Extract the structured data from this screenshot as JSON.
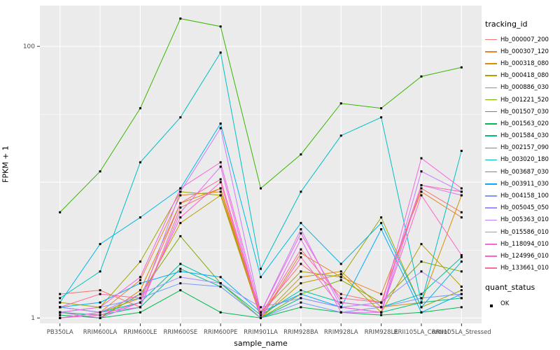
{
  "chart": {
    "ylabel": "FPKM + 1",
    "xlabel": "sample_name",
    "legend_title": "tracking_id",
    "legend2_title": "quant_status",
    "legend2_item_label": "OK"
  },
  "chart_data": {
    "type": "line",
    "title": "",
    "xlabel": "sample_name",
    "ylabel": "FPKM + 1",
    "y_scale": "log10",
    "ylim": [
      1,
      250
    ],
    "legend_position": "right",
    "panel_bg": "#EBEBEB",
    "grid_color": "#FFFFFF",
    "point_color": "#000000",
    "point_shape": "square",
    "quant_status_legend": {
      "title": "quant_status",
      "items": [
        "OK"
      ]
    },
    "grid": {
      "major": [
        1,
        10,
        100
      ],
      "minor": [
        3.162,
        31.62
      ]
    },
    "y_ticks": [
      {
        "label": "100",
        "value": 100
      },
      {
        "label": "1",
        "value": 1
      }
    ],
    "categories": [
      "PB350LA",
      "RRIM600LA",
      "RRIM600LE",
      "RRIM600SE",
      "RRIM600PE",
      "RRIM901LA",
      "RRIM928BA",
      "RRIM928LA",
      "RRIM928LE",
      "RRII105LA_Control",
      "RRII105LA_Stressed"
    ],
    "series": [
      {
        "name": "Hb_000007_200",
        "color": "#F8766D",
        "values": [
          1.5,
          1.6,
          1.2,
          6.5,
          9.0,
          1.1,
          2.5,
          1.5,
          1.3,
          9.0,
          6.0
        ]
      },
      {
        "name": "Hb_000307_120",
        "color": "#EA8331",
        "values": [
          1.2,
          1.1,
          1.9,
          8.0,
          8.5,
          1.0,
          3.0,
          2.0,
          1.5,
          8.5,
          5.5
        ]
      },
      {
        "name": "Hb_000318_080",
        "color": "#D89000",
        "values": [
          1.1,
          1.0,
          1.6,
          7.0,
          9.0,
          1.0,
          2.0,
          2.2,
          1.2,
          1.3,
          8.0
        ]
      },
      {
        "name": "Hb_000418_080",
        "color": "#C09B00",
        "values": [
          1.0,
          1.1,
          1.4,
          5.0,
          8.0,
          1.0,
          1.8,
          2.1,
          1.1,
          3.5,
          1.7
        ]
      },
      {
        "name": "Hb_000886_030",
        "color": "#A3A500",
        "values": [
          1.3,
          1.2,
          2.6,
          8.5,
          8.0,
          1.1,
          2.2,
          2.0,
          5.5,
          1.2,
          1.6
        ]
      },
      {
        "name": "Hb_001221_520",
        "color": "#7CAE00",
        "values": [
          1.1,
          1.0,
          1.5,
          4.0,
          1.8,
          1.0,
          1.5,
          1.9,
          1.3,
          2.6,
          2.2
        ]
      },
      {
        "name": "Hb_001507_030",
        "color": "#39B600",
        "values": [
          6.0,
          12.0,
          35.0,
          160.0,
          140.0,
          9.0,
          16.0,
          38.0,
          35.0,
          60.0,
          70.0
        ]
      },
      {
        "name": "Hb_001563_020",
        "color": "#00BB4E",
        "values": [
          1.05,
          1.0,
          1.1,
          1.6,
          1.1,
          1.0,
          1.2,
          1.1,
          1.05,
          1.1,
          1.2
        ]
      },
      {
        "name": "Hb_001584_030",
        "color": "#00C079",
        "values": [
          1.1,
          1.05,
          1.2,
          2.3,
          1.7,
          1.0,
          1.4,
          1.2,
          1.1,
          1.3,
          1.4
        ]
      },
      {
        "name": "Hb_002157_090",
        "color": "#00C19F",
        "values": [
          1.2,
          1.1,
          1.3,
          2.5,
          1.8,
          1.05,
          1.6,
          1.3,
          1.2,
          1.5,
          2.8
        ]
      },
      {
        "name": "Hb_003020_180",
        "color": "#00BFC4",
        "values": [
          1.4,
          2.2,
          14.0,
          30.0,
          90.0,
          2.3,
          8.5,
          22.0,
          30.0,
          1.3,
          17.0
        ]
      },
      {
        "name": "Hb_003687_030",
        "color": "#00B8E7",
        "values": [
          1.3,
          3.5,
          5.5,
          9.0,
          27.0,
          2.0,
          5.0,
          2.5,
          5.0,
          1.2,
          2.6
        ]
      },
      {
        "name": "Hb_003911_030",
        "color": "#00ACFC",
        "values": [
          1.2,
          1.3,
          1.8,
          2.2,
          2.0,
          1.1,
          1.5,
          1.2,
          4.5,
          1.1,
          1.5
        ]
      },
      {
        "name": "Hb_004158_100",
        "color": "#7997FF",
        "values": [
          1.1,
          1.2,
          1.4,
          1.8,
          1.7,
          1.0,
          1.3,
          1.1,
          1.2,
          1.4,
          1.5
        ]
      },
      {
        "name": "Hb_005045_050",
        "color": "#A58AFF",
        "values": [
          1.2,
          1.1,
          1.5,
          2.0,
          1.8,
          1.2,
          1.4,
          1.2,
          1.3,
          2.2,
          1.4
        ]
      },
      {
        "name": "Hb_005363_010",
        "color": "#C77CFF",
        "values": [
          1.1,
          1.0,
          1.3,
          8.5,
          25.0,
          1.1,
          4.5,
          1.2,
          1.1,
          12.0,
          8.5
        ]
      },
      {
        "name": "Hb_015586_010",
        "color": "#E36EF6",
        "values": [
          1.0,
          1.1,
          1.2,
          6.0,
          13.0,
          1.0,
          3.8,
          1.1,
          1.1,
          9.5,
          8.0
        ]
      },
      {
        "name": "Hb_118094_010",
        "color": "#F763E0",
        "values": [
          1.1,
          1.2,
          2.0,
          9.0,
          14.0,
          1.1,
          4.2,
          1.3,
          1.2,
          15.0,
          9.0
        ]
      },
      {
        "name": "Hb_124996_010",
        "color": "#FF61C7",
        "values": [
          1.0,
          1.05,
          1.3,
          5.5,
          10.0,
          1.0,
          2.8,
          1.2,
          1.1,
          8.0,
          2.9
        ]
      },
      {
        "name": "Hb_133661_010",
        "color": "#FF689E",
        "values": [
          1.2,
          1.5,
          1.4,
          7.0,
          10.5,
          1.05,
          3.2,
          1.4,
          1.3,
          9.5,
          8.5
        ]
      }
    ]
  }
}
